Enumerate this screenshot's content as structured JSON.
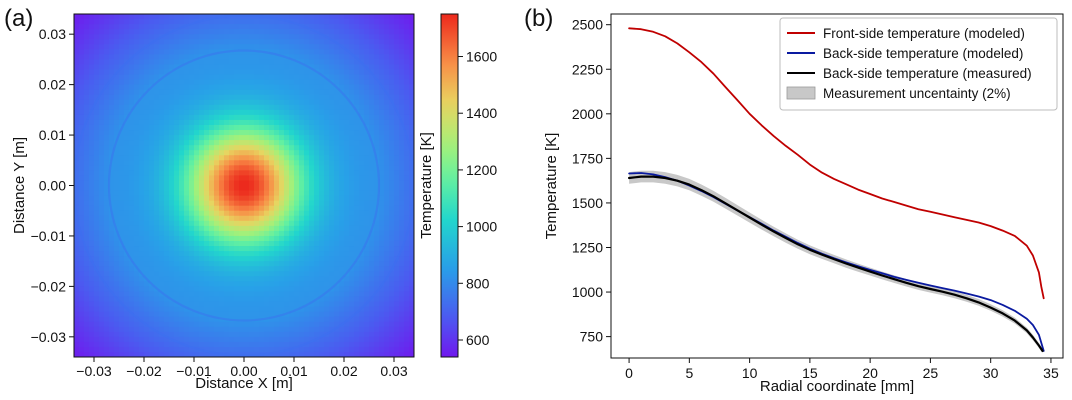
{
  "chart_data": [
    {
      "panel_label": "(a)",
      "type": "heatmap",
      "title": "",
      "xlabel": "Distance X [m]",
      "ylabel": "Distance Y [m]",
      "xlim": [
        -0.034,
        0.034
      ],
      "ylim": [
        -0.034,
        0.034
      ],
      "x_ticks": [
        -0.03,
        -0.02,
        -0.01,
        0.0,
        0.01,
        0.02,
        0.03
      ],
      "x_tick_labels": [
        "−0.03",
        "−0.02",
        "−0.01",
        "0.00",
        "0.01",
        "0.02",
        "0.03"
      ],
      "y_ticks": [
        0.03,
        0.02,
        0.01,
        0.0,
        -0.01,
        -0.02,
        -0.03
      ],
      "y_tick_labels": [
        "0.03",
        "0.02",
        "0.01",
        "0.00",
        "−0.01",
        "−0.02",
        "−0.03"
      ],
      "colormap": "rainbow",
      "colorbar_label": "Temperature [K]",
      "colorbar_range": [
        540,
        1750
      ],
      "colorbar_ticks": [
        600,
        800,
        1000,
        1200,
        1400,
        1600
      ],
      "colorbar_tick_labels": [
        "600",
        "800",
        "1000",
        "1200",
        "1400",
        "1600"
      ],
      "field": {
        "center_value": 1750,
        "edge_value": 820,
        "corner_value": 560,
        "ring_radii": [
          0.027,
          0.034
        ]
      }
    },
    {
      "panel_label": "(b)",
      "type": "line",
      "title": "",
      "xlabel": "Radial coordinate [mm]",
      "ylabel": "Temperature [K]",
      "xlim": [
        -1.5,
        36
      ],
      "ylim": [
        630,
        2560
      ],
      "x_ticks": [
        0,
        5,
        10,
        15,
        20,
        25,
        30,
        35
      ],
      "x_tick_labels": [
        "0",
        "5",
        "10",
        "15",
        "20",
        "25",
        "30",
        "35"
      ],
      "y_ticks": [
        750,
        1000,
        1250,
        1500,
        1750,
        2000,
        2250,
        2500
      ],
      "y_tick_labels": [
        "750",
        "1000",
        "1250",
        "1500",
        "1750",
        "2000",
        "2250",
        "2500"
      ],
      "legend_position": "top-right",
      "series": [
        {
          "name": "Front-side temperature (modeled)",
          "color": "#c00000",
          "x": [
            0,
            1,
            2,
            3,
            4,
            5,
            6,
            7,
            8,
            9,
            10,
            11,
            12,
            13,
            14,
            15,
            16,
            17,
            18,
            19,
            20,
            21,
            22,
            23,
            24,
            25,
            26,
            27,
            28,
            29,
            30,
            31,
            32,
            33,
            33.5,
            34,
            34.2,
            34.4
          ],
          "y": [
            2480,
            2475,
            2460,
            2435,
            2395,
            2345,
            2290,
            2225,
            2150,
            2075,
            2000,
            1935,
            1875,
            1820,
            1770,
            1715,
            1670,
            1635,
            1605,
            1575,
            1550,
            1525,
            1505,
            1485,
            1465,
            1450,
            1435,
            1420,
            1405,
            1390,
            1370,
            1345,
            1315,
            1260,
            1205,
            1110,
            1030,
            965
          ]
        },
        {
          "name": "Back-side temperature (modeled)",
          "color": "#0a1aa0",
          "x": [
            0,
            1,
            2,
            3,
            4,
            5,
            6,
            7,
            8,
            9,
            10,
            11,
            12,
            13,
            14,
            15,
            16,
            17,
            18,
            19,
            20,
            21,
            22,
            23,
            24,
            25,
            26,
            27,
            28,
            29,
            30,
            31,
            32,
            33,
            33.5,
            34,
            34.4
          ],
          "y": [
            1665,
            1668,
            1660,
            1645,
            1625,
            1598,
            1567,
            1533,
            1495,
            1457,
            1420,
            1383,
            1345,
            1310,
            1275,
            1243,
            1215,
            1190,
            1167,
            1145,
            1125,
            1105,
            1085,
            1068,
            1052,
            1037,
            1022,
            1008,
            992,
            975,
            955,
            928,
            895,
            850,
            815,
            760,
            670
          ]
        },
        {
          "name": "Back-side temperature (measured)",
          "color": "#000000",
          "x": [
            0,
            1,
            2,
            3,
            4,
            5,
            6,
            7,
            8,
            9,
            10,
            11,
            12,
            13,
            14,
            15,
            16,
            17,
            18,
            19,
            20,
            21,
            22,
            23,
            24,
            25,
            26,
            27,
            28,
            29,
            30,
            31,
            32,
            33,
            33.5,
            34,
            34.3
          ],
          "y": [
            1640,
            1648,
            1648,
            1640,
            1625,
            1603,
            1572,
            1537,
            1498,
            1458,
            1418,
            1378,
            1340,
            1303,
            1268,
            1237,
            1210,
            1185,
            1160,
            1137,
            1115,
            1093,
            1072,
            1052,
            1033,
            1017,
            1002,
            985,
            965,
            942,
            913,
            880,
            840,
            785,
            745,
            700,
            670
          ]
        }
      ],
      "uncertainty_band": {
        "name": "Measurement uncentainty (2%)",
        "color": "#c8c8c8",
        "relative": 0.02
      }
    }
  ]
}
